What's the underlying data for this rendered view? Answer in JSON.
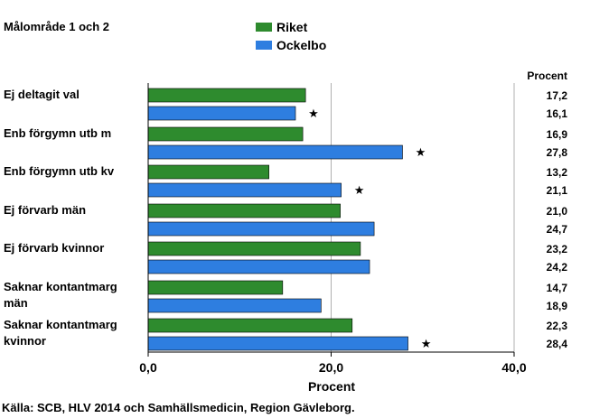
{
  "chart_data": {
    "type": "bar",
    "orientation": "horizontal",
    "title": "Målområde 1 och 2",
    "categories": [
      "Ej deltagit val",
      "Enb förgymn utb m",
      "Enb förgymn utb kv",
      "Ej förvarb män",
      "Ej förvarb kvinnor",
      "Saknar kontantmarg män",
      "Saknar kontantmarg kvinnor"
    ],
    "series": [
      {
        "name": "Riket",
        "color": "#2e8b2e",
        "values": [
          17.2,
          16.9,
          13.2,
          21.0,
          23.2,
          14.7,
          22.3
        ],
        "labels": [
          "17,2",
          "16,9",
          "13,2",
          "21,0",
          "23,2",
          "14,7",
          "22,3"
        ]
      },
      {
        "name": "Ockelbo",
        "color": "#2e7ee0",
        "values": [
          16.1,
          27.8,
          21.1,
          24.7,
          24.2,
          18.9,
          28.4
        ],
        "labels": [
          "16,1",
          "27,8",
          "21,1",
          "24,7",
          "24,2",
          "18,9",
          "28,4"
        ],
        "significant": [
          true,
          true,
          true,
          false,
          false,
          false,
          true
        ]
      }
    ],
    "marker_symbol": "★",
    "value_column_header": "Procent",
    "xlabel": "Procent",
    "xlim": [
      0,
      40
    ],
    "xticks": [
      0,
      20,
      40
    ],
    "xtick_labels": [
      "0,0",
      "20,0",
      "40,0"
    ],
    "grid": true,
    "legend_position": "top-center"
  },
  "source": "Källa: SCB, HLV 2014 och Samhällsmedicin, Region Gävleborg."
}
